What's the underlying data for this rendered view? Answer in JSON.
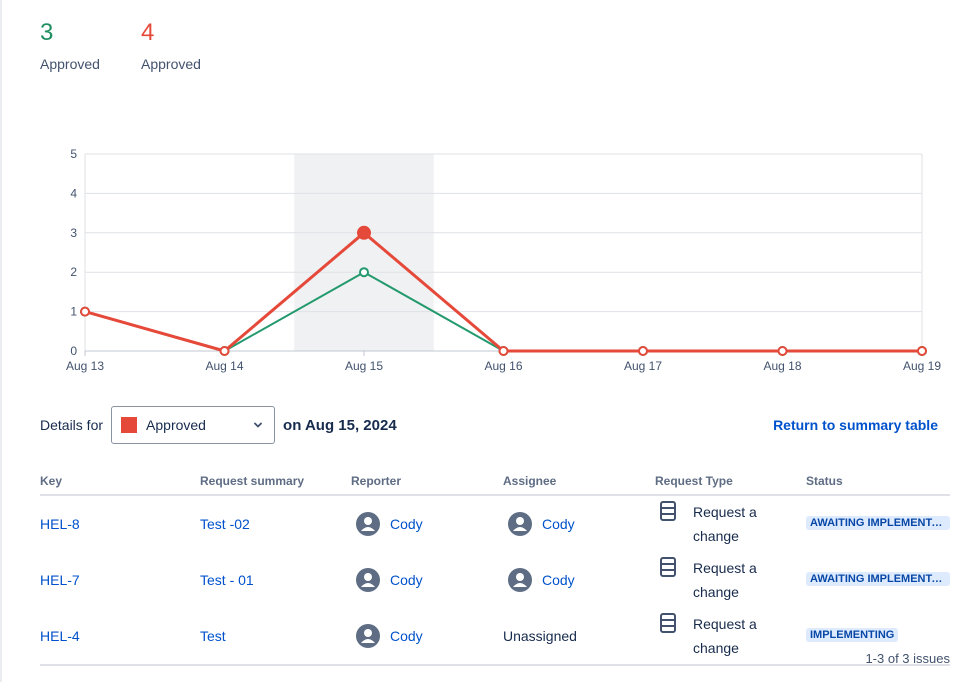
{
  "metrics": [
    {
      "value": "3",
      "label": "Approved",
      "color": "#1f8f5f"
    },
    {
      "value": "4",
      "label": "Approved",
      "color": "#e5493a"
    }
  ],
  "chart_data": {
    "type": "line",
    "x": [
      "Aug 13",
      "Aug 14",
      "Aug 15",
      "Aug 16",
      "Aug 17",
      "Aug 18",
      "Aug 19"
    ],
    "ylim": [
      0,
      5
    ],
    "yticks": [
      0,
      1,
      2,
      3,
      4,
      5
    ],
    "highlighted_category": "Aug 15",
    "series": [
      {
        "color": "#239a6d",
        "values": [
          1,
          0,
          2,
          0,
          0,
          0,
          0
        ]
      },
      {
        "color": "#e5493a",
        "values": [
          1,
          0,
          3,
          0,
          0,
          0,
          0
        ]
      }
    ],
    "grid": true
  },
  "details": {
    "label": "Details for",
    "select_value": "Approved",
    "date": "on Aug 15, 2024",
    "return_link": "Return to summary table"
  },
  "table": {
    "headers": [
      "Key",
      "Request summary",
      "Reporter",
      "Assignee",
      "Request Type",
      "Status"
    ],
    "rows": [
      {
        "key": "HEL-8",
        "summary": "Test -02",
        "reporter": "Cody",
        "assignee": "Cody",
        "request_type": "Request a change",
        "status": "AWAITING IMPLEMENTATION"
      },
      {
        "key": "HEL-7",
        "summary": "Test - 01",
        "reporter": "Cody",
        "assignee": "Cody",
        "request_type": "Request a change",
        "status": "AWAITING IMPLEMENTATION"
      },
      {
        "key": "HEL-4",
        "summary": "Test",
        "reporter": "Cody",
        "assignee": "Unassigned",
        "request_type": "Request a change",
        "status": "IMPLEMENTING"
      }
    ]
  },
  "pagination": "1-3 of 3 issues"
}
